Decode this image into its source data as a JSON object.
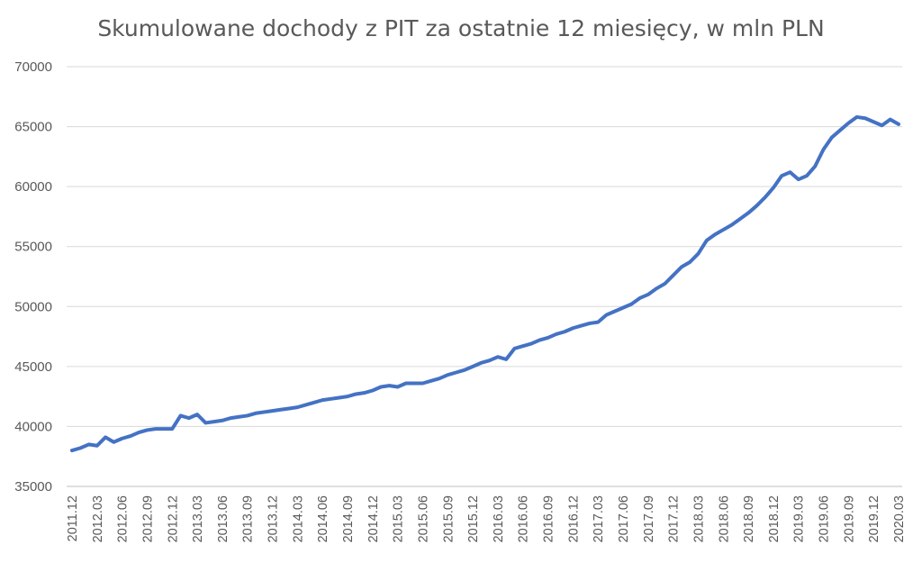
{
  "chart_data": {
    "type": "line",
    "title": "Skumulowane dochody z PIT za ostatnie 12 miesięcy, w mln PLN",
    "xlabel": "",
    "ylabel": "",
    "ylim": [
      35000,
      70000
    ],
    "y_ticks": [
      "35000",
      "40000",
      "45000",
      "50000",
      "55000",
      "60000",
      "65000",
      "70000"
    ],
    "y_tick_values": [
      35000,
      40000,
      45000,
      50000,
      55000,
      60000,
      65000,
      70000
    ],
    "x_tick_labels": [
      "2011.12",
      "2012.03",
      "2012.06",
      "2012.09",
      "2012.12",
      "2013.03",
      "2013.06",
      "2013.09",
      "2013.12",
      "2014.03",
      "2014.06",
      "2014.09",
      "2014.12",
      "2015.03",
      "2015.06",
      "2015.09",
      "2015.12",
      "2016.03",
      "2016.06",
      "2016.09",
      "2016.12",
      "2017.03",
      "2017.06",
      "2017.09",
      "2017.12",
      "2018.03",
      "2018.06",
      "2018.09",
      "2018.12",
      "2019.03",
      "2019.06",
      "2019.09",
      "2019.12",
      "2020.03"
    ],
    "grid": true,
    "line_color": "#4472c4",
    "series": [
      {
        "name": "",
        "values": [
          38000,
          38200,
          38500,
          38400,
          39100,
          38700,
          39000,
          39200,
          39500,
          39700,
          39800,
          39800,
          39800,
          40900,
          40700,
          41000,
          40300,
          40400,
          40500,
          40700,
          40800,
          40900,
          41100,
          41200,
          41300,
          41400,
          41500,
          41600,
          41800,
          42000,
          42200,
          42300,
          42400,
          42500,
          42700,
          42800,
          43000,
          43300,
          43400,
          43300,
          43600,
          43600,
          43600,
          43800,
          44000,
          44300,
          44500,
          44700,
          45000,
          45300,
          45500,
          45800,
          45600,
          46500,
          46700,
          46900,
          47200,
          47400,
          47700,
          47900,
          48200,
          48400,
          48600,
          48700,
          49300,
          49600,
          49900,
          50200,
          50700,
          51000,
          51500,
          51900,
          52600,
          53300,
          53700,
          54400,
          55500,
          56000,
          56400,
          56800,
          57300,
          57800,
          58400,
          59100,
          59900,
          60900,
          61200,
          60600,
          60900,
          61700,
          63100,
          64100,
          64700,
          65300,
          65800,
          65700,
          65400,
          65100,
          65600,
          65200
        ]
      }
    ]
  }
}
